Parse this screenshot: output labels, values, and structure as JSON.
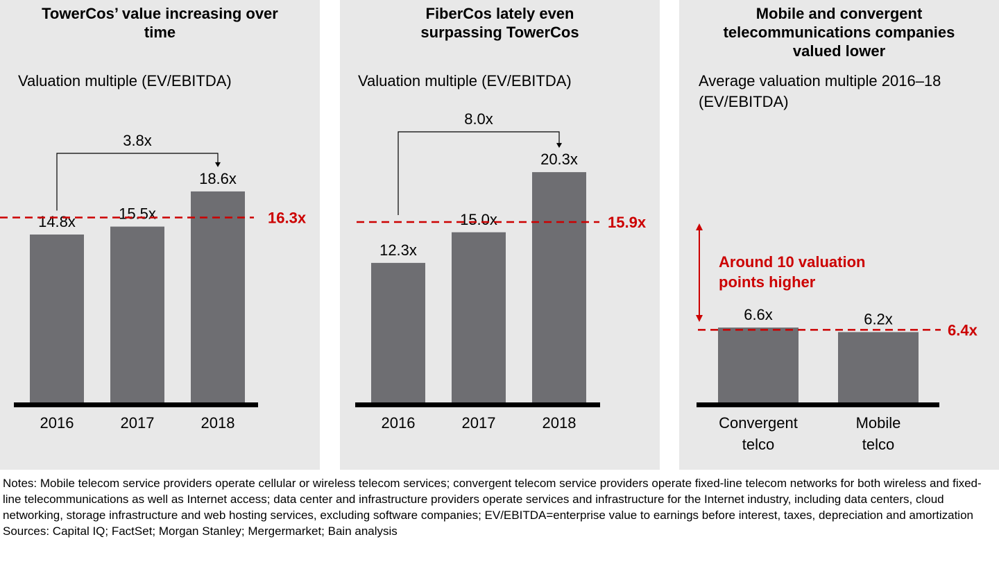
{
  "colors": {
    "panel_bg": "#e8e8e8",
    "bar": "#6e6e72",
    "baseline": "#000000",
    "accent_red": "#cc0000"
  },
  "chart_data": [
    {
      "type": "bar",
      "title": "TowerCos’ value increasing over time",
      "ylabel": "Valuation multiple (EV/EBITDA)",
      "categories": [
        "2016",
        "2017",
        "2018"
      ],
      "values": [
        14.8,
        15.5,
        18.6
      ],
      "value_labels": [
        "14.8x",
        "15.5x",
        "18.6x"
      ],
      "average_line": {
        "value": 16.3,
        "label": "16.3x"
      },
      "change_arrow": {
        "from": "2016",
        "to": "2018",
        "label": "3.8x"
      },
      "ylim": [
        0,
        21
      ]
    },
    {
      "type": "bar",
      "title": "FiberCos lately even surpassing TowerCos",
      "ylabel": "Valuation multiple (EV/EBITDA)",
      "categories": [
        "2016",
        "2017",
        "2018"
      ],
      "values": [
        12.3,
        15.0,
        20.3
      ],
      "value_labels": [
        "12.3x",
        "15.0x",
        "20.3x"
      ],
      "average_line": {
        "value": 15.9,
        "label": "15.9x"
      },
      "change_arrow": {
        "from": "2016",
        "to": "2018",
        "label": "8.0x"
      },
      "ylim": [
        0,
        21
      ]
    },
    {
      "type": "bar",
      "title": "Mobile and convergent telecommunications companies valued lower",
      "ylabel": "Average valuation multiple 2016–18 (EV/EBITDA)",
      "categories": [
        "Convergent telco",
        "Mobile telco"
      ],
      "values": [
        6.6,
        6.2
      ],
      "value_labels": [
        "6.6x",
        "6.2x"
      ],
      "average_line": {
        "value": 6.4,
        "label": "6.4x"
      },
      "annotation": "Around 10 valuation points higher",
      "ylim": [
        0,
        21
      ]
    }
  ],
  "panels": [
    {
      "title": "TowerCos’ value increasing over time",
      "subtitle": "Valuation multiple (EV/EBITDA)"
    },
    {
      "title": "FiberCos lately even surpassing TowerCos",
      "subtitle": "Valuation multiple (EV/EBITDA)"
    },
    {
      "title": "Mobile and convergent telecommunications companies valued lower",
      "subtitle": "Average valuation multiple 2016–18 (EV/EBITDA)"
    }
  ],
  "footer": {
    "notes": "Notes: Mobile telecom service providers operate cellular or wireless telecom services; convergent telecom service providers operate fixed-line telecom networks for both wireless and fixed-line telecommunications as well as Internet access; data center and infrastructure providers operate services and infrastructure for the Internet industry, including data centers, cloud networking, storage infrastructure and web hosting services, excluding software companies; EV/EBITDA=enterprise value to earnings before interest, taxes, depreciation and amortization",
    "sources": "Sources: Capital IQ; FactSet; Morgan Stanley; Mergermarket; Bain analysis"
  }
}
